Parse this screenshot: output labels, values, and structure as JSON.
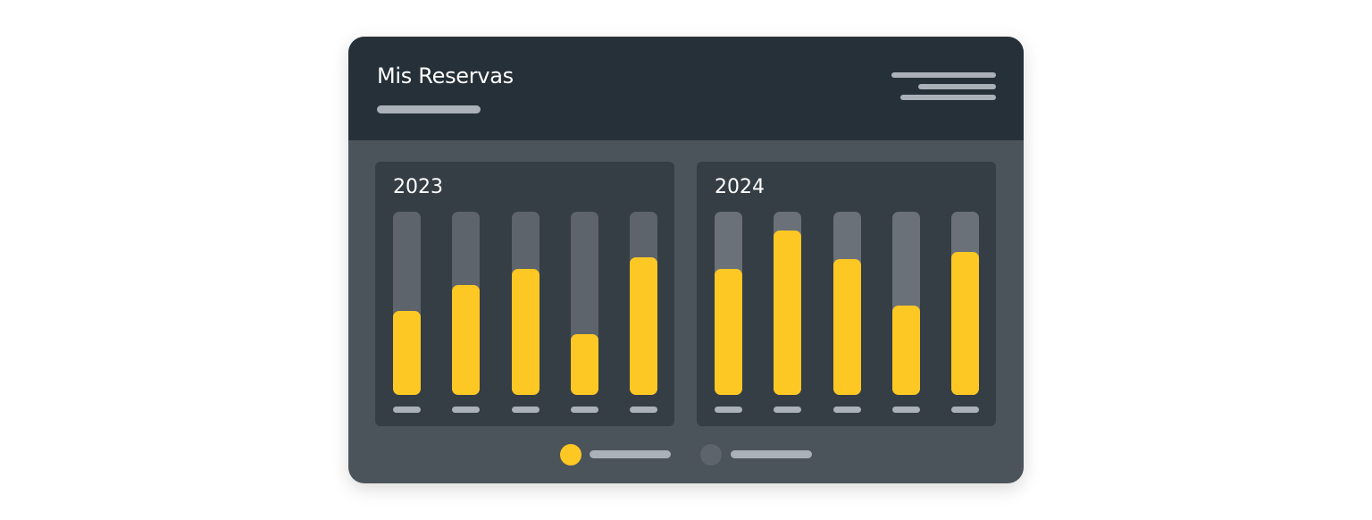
{
  "header": {
    "title": "Mis Reservas"
  },
  "colors": {
    "header_bg": "#263038",
    "body_bg": "#4b535b",
    "panel_bg": "#353d45",
    "bar_fill": "#fec824",
    "bar_track": "#5d646b",
    "legend_secondary": "#5d646b"
  },
  "icons": {
    "menu": "menu-lines-icon"
  },
  "chart_data": [
    {
      "type": "bar",
      "title": "2023",
      "values": [
        0.46,
        0.6,
        0.69,
        0.33,
        0.75
      ],
      "ylim": [
        0,
        1
      ],
      "grid": false
    },
    {
      "type": "bar",
      "title": "2024",
      "values": [
        0.69,
        0.9,
        0.74,
        0.49,
        0.78
      ],
      "ylim": [
        0,
        1
      ],
      "grid": false
    }
  ],
  "legend": {
    "placement": "bottom-center"
  }
}
